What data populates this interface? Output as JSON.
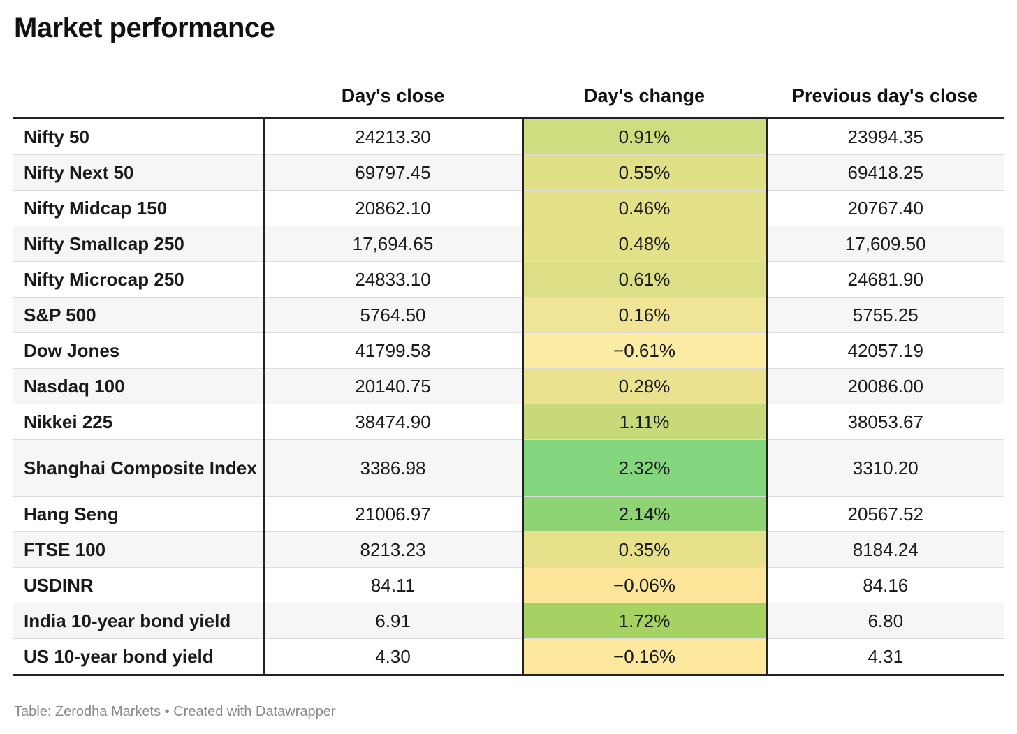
{
  "title": "Market performance",
  "footer": "Table: Zerodha Markets • Created with Datawrapper",
  "chart_data": {
    "type": "table",
    "columns": [
      "",
      "Day's close",
      "Day's change",
      "Previous day's close"
    ],
    "rows": [
      {
        "name": "Nifty 50",
        "close": "24213.30",
        "change": "0.91%",
        "prev": "23994.35",
        "color": "#cfdc7f"
      },
      {
        "name": "Nifty Next 50",
        "close": "69797.45",
        "change": "0.55%",
        "prev": "69418.25",
        "color": "#e0e187"
      },
      {
        "name": "Nifty Midcap 150",
        "close": "20862.10",
        "change": "0.46%",
        "prev": "20767.40",
        "color": "#e3e188"
      },
      {
        "name": "Nifty Smallcap 250",
        "close": "17,694.65",
        "change": "0.48%",
        "prev": "17,609.50",
        "color": "#e2e188"
      },
      {
        "name": "Nifty Microcap 250",
        "close": "24833.10",
        "change": "0.61%",
        "prev": "24681.90",
        "color": "#dcdf85"
      },
      {
        "name": "S&P 500",
        "close": "5764.50",
        "change": "0.16%",
        "prev": "5755.25",
        "color": "#f0e496"
      },
      {
        "name": "Dow Jones",
        "close": "41799.58",
        "change": "−0.61%",
        "prev": "42057.19",
        "color": "#fdeca3"
      },
      {
        "name": "Nasdaq 100",
        "close": "20140.75",
        "change": "0.28%",
        "prev": "20086.00",
        "color": "#ebe290"
      },
      {
        "name": "Nikkei 225",
        "close": "38474.90",
        "change": "1.11%",
        "prev": "38053.67",
        "color": "#c8d97a"
      },
      {
        "name": "Shanghai Composite Index",
        "close": "3386.98",
        "change": "2.32%",
        "prev": "3310.20",
        "color": "#83d67e",
        "tall": true
      },
      {
        "name": "Hang Seng",
        "close": "21006.97",
        "change": "2.14%",
        "prev": "20567.52",
        "color": "#8fd474"
      },
      {
        "name": "FTSE 100",
        "close": "8213.23",
        "change": "0.35%",
        "prev": "8184.24",
        "color": "#e8e18c"
      },
      {
        "name": "USDINR",
        "close": "84.11",
        "change": "−0.06%",
        "prev": "84.16",
        "color": "#fde59a"
      },
      {
        "name": "India 10-year bond yield",
        "close": "6.91",
        "change": "1.72%",
        "prev": "6.80",
        "color": "#a5d262"
      },
      {
        "name": "US 10-year bond yield",
        "close": "4.30",
        "change": "−0.16%",
        "prev": "4.31",
        "color": "#fde89e"
      }
    ]
  }
}
